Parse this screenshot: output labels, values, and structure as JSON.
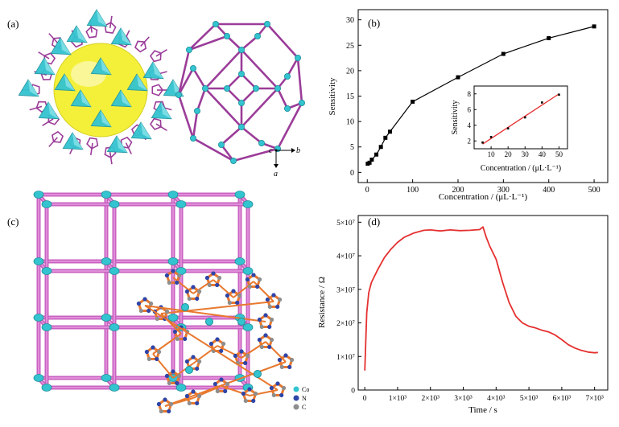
{
  "panels": {
    "a": {
      "label": "(a)",
      "axis_c": "c",
      "axis_b": "b",
      "axis_a": "a"
    },
    "b": {
      "label": "(b)"
    },
    "c": {
      "label": "(c)",
      "legend": [
        "Co",
        "N",
        "C"
      ]
    },
    "d": {
      "label": "(d)"
    }
  },
  "colors": {
    "cyan": "#33c4d0",
    "purple": "#9b3c99",
    "magenta": "#c862c0",
    "orange": "#e8782e",
    "red": "#e53030",
    "blue": "#2f45a8",
    "gray": "#8e8e8e",
    "yellow": "#f4f03a"
  },
  "chart_data": [
    {
      "type": "line",
      "xlabel": "Concentration / (μL·L⁻¹)",
      "ylabel": "Sensitivity",
      "xlim": [
        -20,
        530
      ],
      "ylim": [
        -2,
        32
      ],
      "xticks": [
        0,
        100,
        200,
        300,
        400,
        500
      ],
      "yticks": [
        0,
        5,
        10,
        15,
        20,
        25,
        30
      ],
      "x": [
        1,
        5,
        10,
        20,
        30,
        40,
        50,
        100,
        200,
        300,
        400,
        500
      ],
      "y": [
        1.7,
        1.9,
        2.5,
        3.5,
        5.0,
        6.8,
        8.0,
        13.9,
        18.7,
        23.3,
        26.4,
        28.7
      ]
    },
    {
      "type": "scatter",
      "xlabel": "Concentration / (μL·L⁻¹)",
      "ylabel": "Sensitivity",
      "xlim": [
        0,
        55
      ],
      "ylim": [
        1,
        9
      ],
      "xticks": [
        10,
        20,
        30,
        40,
        50
      ],
      "yticks": [
        2,
        4,
        6,
        8
      ],
      "x": [
        5,
        10,
        20,
        30,
        40,
        50
      ],
      "y": [
        1.8,
        2.5,
        3.6,
        5.0,
        6.9,
        7.9
      ],
      "fit": [
        [
          5,
          1.6
        ],
        [
          50,
          8.0
        ]
      ]
    },
    {
      "type": "line",
      "xlabel": "Time / s",
      "ylabel": "Resistance / Ω",
      "xlim": [
        -200,
        7400
      ],
      "ylim": [
        0,
        52000000
      ],
      "xtick_labels": [
        "0",
        "1×10³",
        "2×10³",
        "3×10³",
        "4×10³",
        "5×10³",
        "6×10³",
        "7×10³"
      ],
      "ytick_labels": [
        "0",
        "1×10⁷",
        "2×10⁷",
        "3×10⁷",
        "4×10⁷",
        "5×10⁷"
      ],
      "x": [
        0,
        60,
        120,
        200,
        300,
        400,
        600,
        800,
        1000,
        1200,
        1500,
        1800,
        2000,
        2300,
        2600,
        2900,
        3200,
        3500,
        3600,
        3700,
        3800,
        4000,
        4200,
        4400,
        4600,
        4800,
        5000,
        5200,
        5400,
        5600,
        5800,
        6000,
        6200,
        6400,
        6600,
        6800,
        7000,
        7100
      ],
      "y": [
        5800000,
        23000000,
        29000000,
        32000000,
        34000000,
        36000000,
        39500000,
        42000000,
        44000000,
        45500000,
        46800000,
        47600000,
        47700000,
        47400000,
        47700000,
        47500000,
        47600000,
        47800000,
        48600000,
        45500000,
        43000000,
        39000000,
        32000000,
        26000000,
        22000000,
        20000000,
        19000000,
        18500000,
        17800000,
        17300000,
        16400000,
        15000000,
        13500000,
        12500000,
        11800000,
        11300000,
        11100000,
        11200000
      ]
    }
  ]
}
